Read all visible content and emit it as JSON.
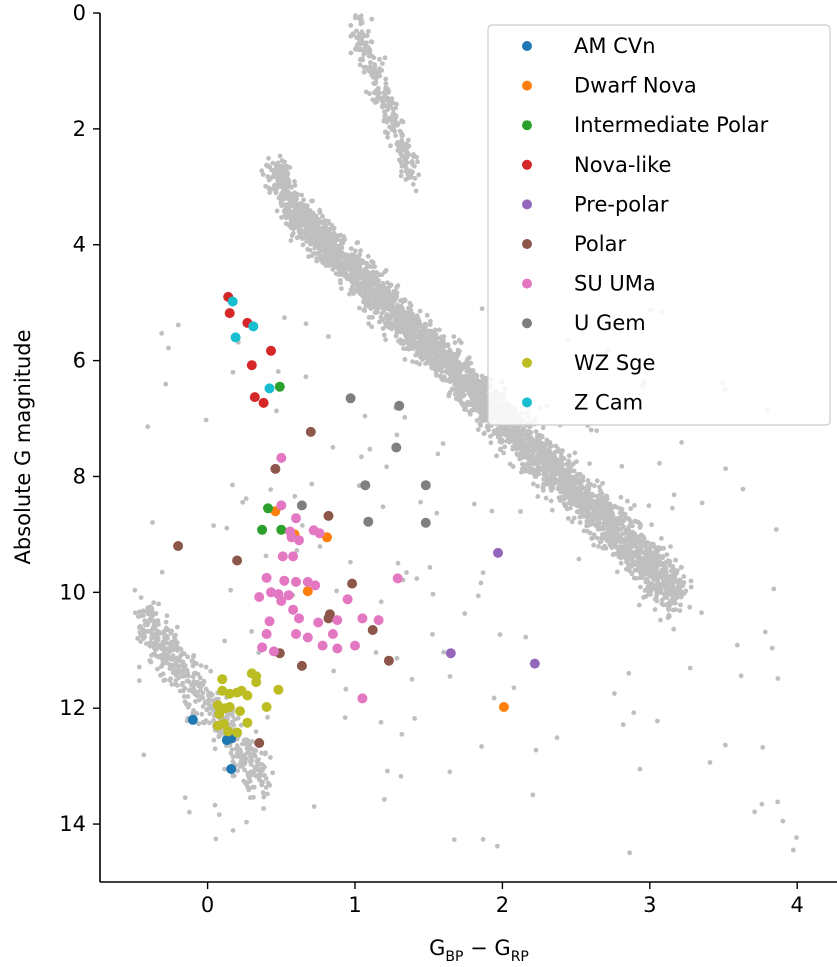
{
  "chart_data": {
    "type": "scatter",
    "title": "",
    "xlabel": {
      "main": "G",
      "sub1": "BP",
      "minus": " − ",
      "main2": "G",
      "sub2": "RP"
    },
    "ylabel": "Absolute G magnitude",
    "xlim": [
      -0.73,
      4.27
    ],
    "ylim": [
      15.0,
      0.0
    ],
    "y_inverted": true,
    "xticks": [
      0,
      1,
      2,
      3,
      4
    ],
    "yticks": [
      0,
      2,
      4,
      6,
      8,
      10,
      12,
      14
    ],
    "grid": false,
    "legend_position": "top-right",
    "background_color": "#bfbfbf",
    "background_population": {
      "main_sequence": {
        "x": [
          -0.5,
          3.2
        ],
        "y": [
          0.2,
          14.5
        ]
      },
      "description_points": []
    },
    "series": [
      {
        "name": "AM CVn",
        "color": "#1f77b4",
        "points": [
          [
            -0.1,
            12.2
          ],
          [
            0.13,
            12.55
          ],
          [
            0.16,
            12.52
          ],
          [
            0.16,
            13.05
          ]
        ]
      },
      {
        "name": "Dwarf Nova",
        "color": "#ff7f0e",
        "points": [
          [
            0.46,
            8.6
          ],
          [
            0.59,
            9.0
          ],
          [
            0.68,
            9.98
          ],
          [
            0.81,
            9.05
          ],
          [
            2.01,
            11.98
          ]
        ]
      },
      {
        "name": "Intermediate Polar",
        "color": "#2ca02c",
        "points": [
          [
            0.49,
            6.45
          ],
          [
            0.41,
            8.55
          ],
          [
            0.37,
            8.92
          ],
          [
            0.5,
            8.92
          ]
        ]
      },
      {
        "name": "Nova-like",
        "color": "#d62728",
        "points": [
          [
            0.14,
            4.9
          ],
          [
            0.15,
            5.18
          ],
          [
            0.27,
            5.35
          ],
          [
            0.43,
            5.83
          ],
          [
            0.3,
            6.08
          ],
          [
            0.32,
            6.63
          ],
          [
            0.38,
            6.73
          ]
        ]
      },
      {
        "name": "Pre-polar",
        "color": "#9467bd",
        "points": [
          [
            1.97,
            9.32
          ],
          [
            1.65,
            11.05
          ],
          [
            2.22,
            11.23
          ]
        ]
      },
      {
        "name": "Polar",
        "color": "#8c564b",
        "points": [
          [
            0.7,
            7.23
          ],
          [
            0.46,
            7.87
          ],
          [
            0.82,
            8.68
          ],
          [
            -0.2,
            9.2
          ],
          [
            0.2,
            9.45
          ],
          [
            0.98,
            9.85
          ],
          [
            0.82,
            10.45
          ],
          [
            0.83,
            10.38
          ],
          [
            1.12,
            10.65
          ],
          [
            0.49,
            11.05
          ],
          [
            0.64,
            11.27
          ],
          [
            1.23,
            11.18
          ],
          [
            0.35,
            12.6
          ]
        ]
      },
      {
        "name": "SU UMa",
        "color": "#e377c2",
        "points": [
          [
            0.5,
            7.68
          ],
          [
            0.5,
            8.5
          ],
          [
            0.56,
            8.95
          ],
          [
            0.6,
            8.72
          ],
          [
            0.62,
            9.1
          ],
          [
            0.57,
            9.05
          ],
          [
            0.72,
            8.93
          ],
          [
            0.76,
            8.98
          ],
          [
            0.51,
            9.38
          ],
          [
            0.58,
            9.38
          ],
          [
            0.4,
            9.75
          ],
          [
            0.52,
            9.8
          ],
          [
            0.6,
            9.82
          ],
          [
            0.68,
            9.82
          ],
          [
            0.73,
            9.88
          ],
          [
            0.43,
            10.0
          ],
          [
            0.48,
            10.03
          ],
          [
            0.55,
            10.05
          ],
          [
            0.35,
            10.08
          ],
          [
            0.5,
            10.15
          ],
          [
            0.58,
            10.3
          ],
          [
            0.62,
            10.45
          ],
          [
            0.75,
            10.52
          ],
          [
            0.88,
            10.48
          ],
          [
            0.95,
            10.12
          ],
          [
            0.42,
            10.5
          ],
          [
            0.4,
            10.72
          ],
          [
            0.6,
            10.72
          ],
          [
            0.85,
            10.72
          ],
          [
            1.05,
            10.45
          ],
          [
            1.16,
            10.48
          ],
          [
            0.37,
            10.95
          ],
          [
            0.45,
            11.02
          ],
          [
            0.68,
            10.78
          ],
          [
            0.78,
            10.92
          ],
          [
            0.88,
            10.97
          ],
          [
            1.0,
            10.92
          ],
          [
            1.29,
            9.76
          ],
          [
            1.05,
            11.83
          ]
        ]
      },
      {
        "name": "U Gem",
        "color": "#7f7f7f",
        "points": [
          [
            0.97,
            6.65
          ],
          [
            1.3,
            6.78
          ],
          [
            1.28,
            7.5
          ],
          [
            1.07,
            8.15
          ],
          [
            1.48,
            8.15
          ],
          [
            0.64,
            8.5
          ],
          [
            1.09,
            8.78
          ],
          [
            1.48,
            8.8
          ]
        ]
      },
      {
        "name": "WZ Sge",
        "color": "#bcbd22",
        "points": [
          [
            0.1,
            11.5
          ],
          [
            0.1,
            11.7
          ],
          [
            0.15,
            11.75
          ],
          [
            0.2,
            11.73
          ],
          [
            0.23,
            11.7
          ],
          [
            0.27,
            11.78
          ],
          [
            0.3,
            11.4
          ],
          [
            0.33,
            11.45
          ],
          [
            0.48,
            11.68
          ],
          [
            0.07,
            11.95
          ],
          [
            0.12,
            12.0
          ],
          [
            0.15,
            11.98
          ],
          [
            0.08,
            12.1
          ],
          [
            0.11,
            12.27
          ],
          [
            0.22,
            12.05
          ],
          [
            0.27,
            12.25
          ],
          [
            0.4,
            11.98
          ],
          [
            0.07,
            12.3
          ],
          [
            0.14,
            12.4
          ],
          [
            0.2,
            12.42
          ],
          [
            0.33,
            11.55
          ]
        ]
      },
      {
        "name": "Z Cam",
        "color": "#17becf",
        "points": [
          [
            0.17,
            4.98
          ],
          [
            0.31,
            5.41
          ],
          [
            0.19,
            5.6
          ],
          [
            0.42,
            6.48
          ]
        ]
      }
    ]
  }
}
